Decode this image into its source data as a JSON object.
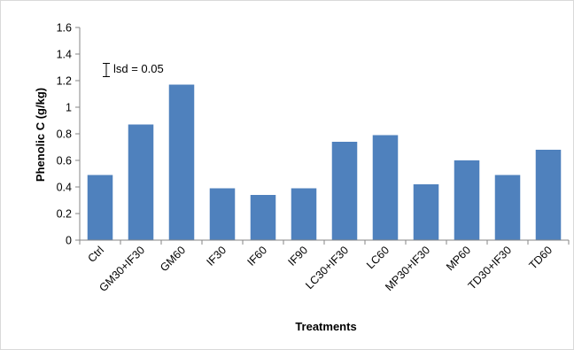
{
  "chart_data": {
    "type": "bar",
    "title": "",
    "xlabel": "Treatments",
    "ylabel": "Phenolic C (g/kg)",
    "categories": [
      "Ctrl",
      "GM30+IF30",
      "GM60",
      "IF30",
      "IF60",
      "IF90",
      "LC30+IF30",
      "LC60",
      "MP30+IF30",
      "MP60",
      "TD30+IF30",
      "TD60"
    ],
    "values": [
      0.49,
      0.87,
      1.17,
      0.39,
      0.34,
      0.39,
      0.74,
      0.79,
      0.42,
      0.6,
      0.49,
      0.68
    ],
    "ylim": [
      0,
      1.6
    ],
    "yticks": [
      0,
      0.2,
      0.4,
      0.6,
      0.8,
      1,
      1.2,
      1.4,
      1.6
    ],
    "ytick_labels": [
      "0",
      "0.2",
      "0.4",
      "0.6",
      "0.8",
      "1",
      "1.2",
      "1.4",
      "1.6"
    ],
    "grid": false,
    "legend": "none",
    "bar_color": "#4f81bd",
    "annotation": {
      "text": "lsd = 0.05",
      "error_bar_center": 1.28,
      "error_bar_halfwidth": 0.05
    }
  }
}
